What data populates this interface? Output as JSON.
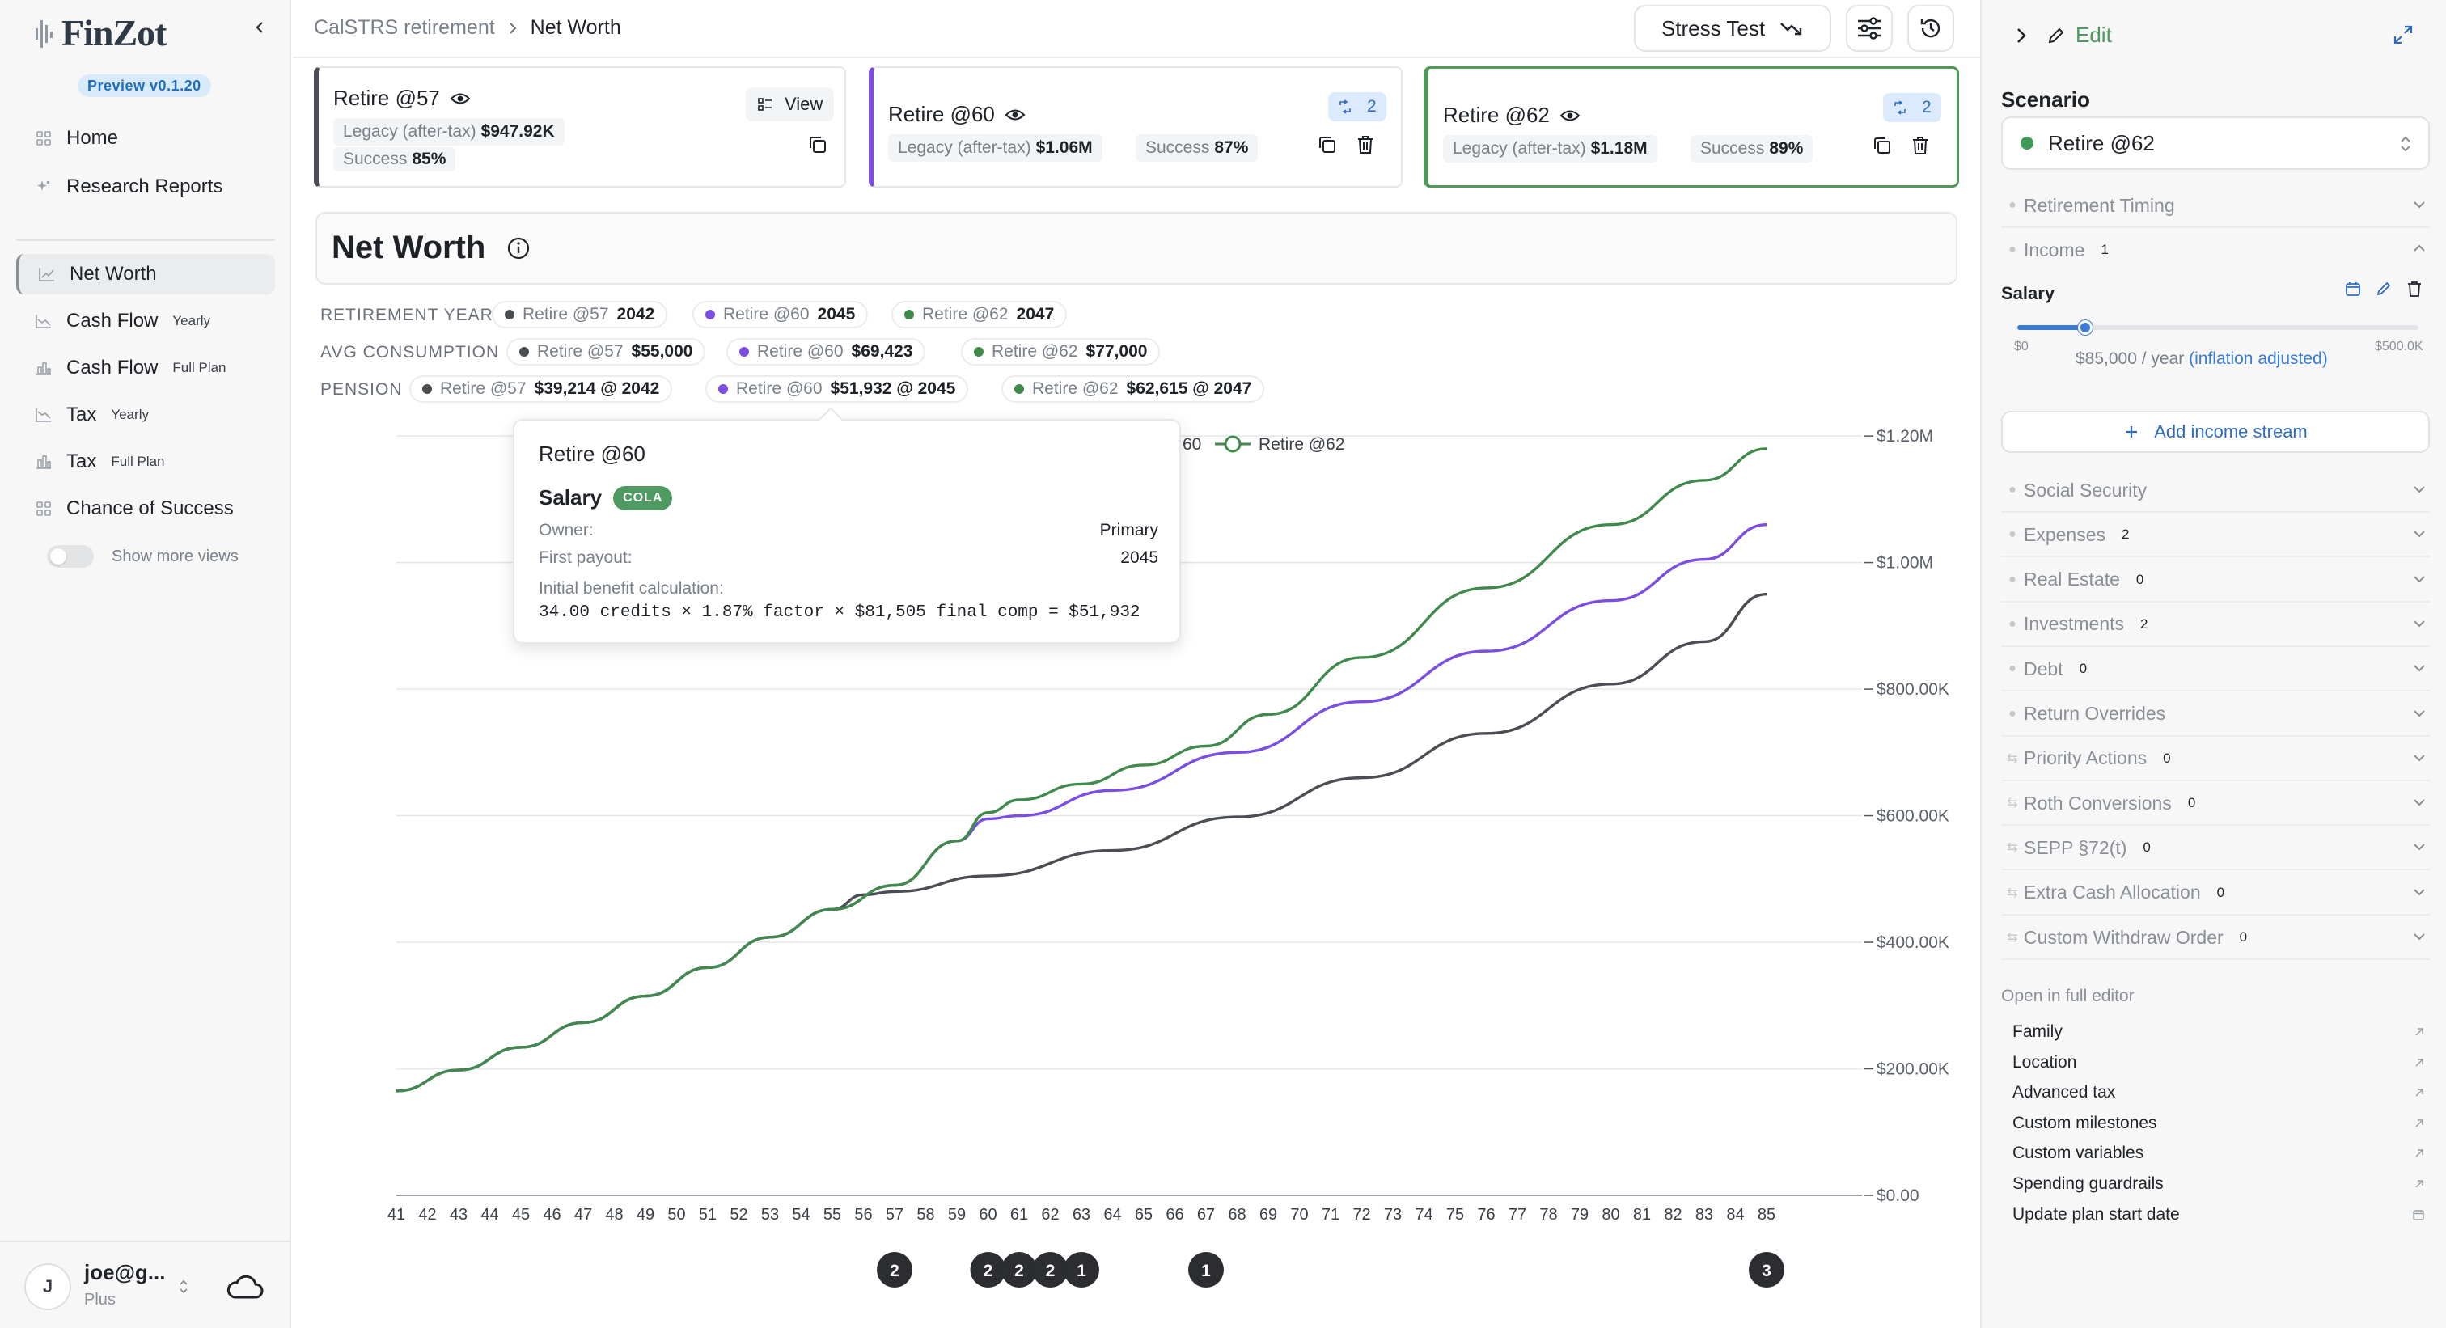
{
  "app": {
    "name": "FinZot",
    "version_badge": "Preview v0.1.20"
  },
  "sidebar": {
    "top_items": [
      {
        "label": "Home",
        "icon": "grid-icon"
      },
      {
        "label": "Research Reports",
        "icon": "sparkle-icon"
      }
    ],
    "views": [
      {
        "label": "Net Worth",
        "tag": "",
        "active": true
      },
      {
        "label": "Cash Flow",
        "tag": "Yearly"
      },
      {
        "label": "Cash Flow",
        "tag": "Full Plan"
      },
      {
        "label": "Tax",
        "tag": "Yearly"
      },
      {
        "label": "Tax",
        "tag": "Full Plan"
      },
      {
        "label": "Chance of Success",
        "tag": ""
      }
    ],
    "show_more": "Show more views",
    "user": {
      "initial": "J",
      "email": "joe@g...",
      "plan": "Plus"
    }
  },
  "header": {
    "breadcrumb": [
      "CalSTRS retirement",
      "Net Worth"
    ],
    "stress_test": "Stress Test"
  },
  "cards": [
    {
      "title": "Retire @57",
      "legacy_label": "Legacy (after-tax)",
      "legacy": "$947.92K",
      "success_label": "Success",
      "success": "85%",
      "view_label": "View",
      "color": "#4b4f55"
    },
    {
      "title": "Retire @60",
      "legacy_label": "Legacy (after-tax)",
      "legacy": "$1.06M",
      "success_label": "Success",
      "success": "87%",
      "badge": "2",
      "color": "#7b4de0"
    },
    {
      "title": "Retire @62",
      "legacy_label": "Legacy (after-tax)",
      "legacy": "$1.18M",
      "success_label": "Success",
      "success": "89%",
      "badge": "2",
      "color": "#4f9a58"
    }
  ],
  "main": {
    "title": "Net Worth"
  },
  "summary": {
    "rows": [
      {
        "label": "RETIREMENT YEAR",
        "items": [
          {
            "name": "Retire @57",
            "value": "2042"
          },
          {
            "name": "Retire @60",
            "value": "2045"
          },
          {
            "name": "Retire @62",
            "value": "2047"
          }
        ]
      },
      {
        "label": "AVG CONSUMPTION",
        "items": [
          {
            "name": "Retire @57",
            "value": "$55,000"
          },
          {
            "name": "Retire @60",
            "value": "$69,423"
          },
          {
            "name": "Retire @62",
            "value": "$77,000"
          }
        ]
      },
      {
        "label": "PENSION",
        "items": [
          {
            "name": "Retire @57",
            "value": "$39,214 @ 2042"
          },
          {
            "name": "Retire @60",
            "value": "$51,932 @ 2045"
          },
          {
            "name": "Retire @62",
            "value": "$62,615 @ 2047"
          }
        ]
      }
    ]
  },
  "tooltip": {
    "title": "Retire @60",
    "income_name": "Salary",
    "badge": "COLA",
    "rows": [
      {
        "k": "Owner:",
        "v": "Primary"
      },
      {
        "k": "First payout:",
        "v": "2045"
      }
    ],
    "calc_label": "Initial benefit calculation:",
    "calc": "34.00 credits × 1.87% factor × $81,505 final comp = $51,932"
  },
  "chart_data": {
    "type": "line",
    "x": [
      41,
      42,
      43,
      44,
      45,
      46,
      47,
      48,
      49,
      50,
      51,
      52,
      53,
      54,
      55,
      56,
      57,
      58,
      59,
      60,
      61,
      62,
      63,
      64,
      65,
      66,
      67,
      68,
      69,
      70,
      71,
      72,
      73,
      74,
      75,
      76,
      77,
      78,
      79,
      80,
      81,
      82,
      83,
      84,
      85
    ],
    "ylim": [
      0,
      1250000
    ],
    "yticks": [
      "$0.00",
      "$200.00K",
      "$400.00K",
      "$600.00K",
      "$800.00K",
      "$1.00M",
      "$1.20M"
    ],
    "ytick_values": [
      0,
      200000,
      400000,
      600000,
      800000,
      1000000,
      1200000
    ],
    "legend_partial": "60",
    "legend": "Retire @62",
    "series": [
      {
        "name": "Retire @57",
        "color": "#4a4d52",
        "points": [
          [
            41,
            165000
          ],
          [
            43,
            198000
          ],
          [
            45,
            234000
          ],
          [
            47,
            273000
          ],
          [
            49,
            315000
          ],
          [
            51,
            360000
          ],
          [
            53,
            408000
          ],
          [
            55,
            452000
          ],
          [
            56,
            475000
          ],
          [
            57,
            480000
          ],
          [
            60,
            505000
          ],
          [
            64,
            545000
          ],
          [
            68,
            598000
          ],
          [
            72,
            660000
          ],
          [
            76,
            730000
          ],
          [
            80,
            808000
          ],
          [
            83,
            875000
          ],
          [
            85,
            950000
          ]
        ]
      },
      {
        "name": "Retire @60",
        "color": "#7b4de0",
        "points": [
          [
            41,
            165000
          ],
          [
            43,
            198000
          ],
          [
            45,
            234000
          ],
          [
            47,
            273000
          ],
          [
            49,
            315000
          ],
          [
            51,
            360000
          ],
          [
            53,
            408000
          ],
          [
            55,
            452000
          ],
          [
            57,
            490000
          ],
          [
            59,
            560000
          ],
          [
            60,
            595000
          ],
          [
            61,
            600000
          ],
          [
            64,
            640000
          ],
          [
            68,
            700000
          ],
          [
            72,
            780000
          ],
          [
            76,
            860000
          ],
          [
            80,
            940000
          ],
          [
            83,
            1005000
          ],
          [
            85,
            1060000
          ]
        ]
      },
      {
        "name": "Retire @62",
        "color": "#3f8a4a",
        "points": [
          [
            41,
            165000
          ],
          [
            43,
            198000
          ],
          [
            45,
            234000
          ],
          [
            47,
            273000
          ],
          [
            49,
            315000
          ],
          [
            51,
            360000
          ],
          [
            53,
            408000
          ],
          [
            55,
            452000
          ],
          [
            57,
            490000
          ],
          [
            59,
            560000
          ],
          [
            60,
            605000
          ],
          [
            61,
            625000
          ],
          [
            63,
            650000
          ],
          [
            65,
            680000
          ],
          [
            67,
            710000
          ],
          [
            69,
            760000
          ],
          [
            72,
            850000
          ],
          [
            76,
            960000
          ],
          [
            80,
            1060000
          ],
          [
            83,
            1130000
          ],
          [
            85,
            1180000
          ]
        ]
      }
    ],
    "markers": [
      {
        "x": 57,
        "label": "2"
      },
      {
        "x": 60,
        "label": "2"
      },
      {
        "x": 61,
        "label": "2"
      },
      {
        "x": 62,
        "label": "2"
      },
      {
        "x": 63,
        "label": "1"
      },
      {
        "x": 67,
        "label": "1"
      },
      {
        "x": 85,
        "label": "3"
      }
    ]
  },
  "rpanel": {
    "edit": "Edit",
    "scenario_label": "Scenario",
    "scenario_value": "Retire @62",
    "sections_top": [
      {
        "label": "Retirement Timing",
        "count": ""
      },
      {
        "label": "Income",
        "count": "1"
      }
    ],
    "salary": {
      "label": "Salary",
      "min": "$0",
      "max": "$500.0K",
      "value": "$85,000 / year",
      "note": "(inflation adjusted)",
      "fraction": 0.17
    },
    "add_income": "Add income stream",
    "sections": [
      {
        "label": "Social Security",
        "count": ""
      },
      {
        "label": "Expenses",
        "count": "2"
      },
      {
        "label": "Real Estate",
        "count": "0"
      },
      {
        "label": "Investments",
        "count": "2"
      },
      {
        "label": "Debt",
        "count": "0"
      },
      {
        "label": "Return Overrides",
        "count": ""
      },
      {
        "label": "Priority Actions",
        "count": "0"
      },
      {
        "label": "Roth Conversions",
        "count": "0"
      },
      {
        "label": "SEPP §72(t)",
        "count": "0"
      },
      {
        "label": "Extra Cash Allocation",
        "count": "0"
      },
      {
        "label": "Custom Withdraw Order",
        "count": "0"
      }
    ],
    "open_label": "Open in full editor",
    "links": [
      "Family",
      "Location",
      "Advanced tax",
      "Custom milestones",
      "Custom variables",
      "Spending guardrails",
      "Update plan start date"
    ]
  }
}
